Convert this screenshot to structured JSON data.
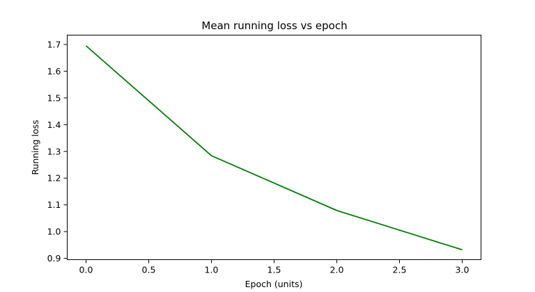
{
  "chart_data": {
    "type": "line",
    "title": "Mean running loss vs epoch",
    "xlabel": "Epoch (units)",
    "ylabel": "Running loss",
    "xlim": [
      -0.15,
      3.15
    ],
    "ylim": [
      0.895,
      1.735
    ],
    "xticks": [
      0.0,
      0.5,
      1.0,
      1.5,
      2.0,
      2.5,
      3.0
    ],
    "xtick_labels": [
      "0.0",
      "0.5",
      "1.0",
      "1.5",
      "2.0",
      "2.5",
      "3.0"
    ],
    "yticks": [
      0.9,
      1.0,
      1.1,
      1.2,
      1.3,
      1.4,
      1.5,
      1.6,
      1.7
    ],
    "ytick_labels": [
      "0.9",
      "1.0",
      "1.1",
      "1.2",
      "1.3",
      "1.4",
      "1.5",
      "1.6",
      "1.7"
    ],
    "grid": false,
    "series": [
      {
        "color": "#008000",
        "x": [
          0,
          1,
          2,
          3
        ],
        "y": [
          1.695,
          1.284,
          1.079,
          0.932
        ]
      }
    ]
  }
}
